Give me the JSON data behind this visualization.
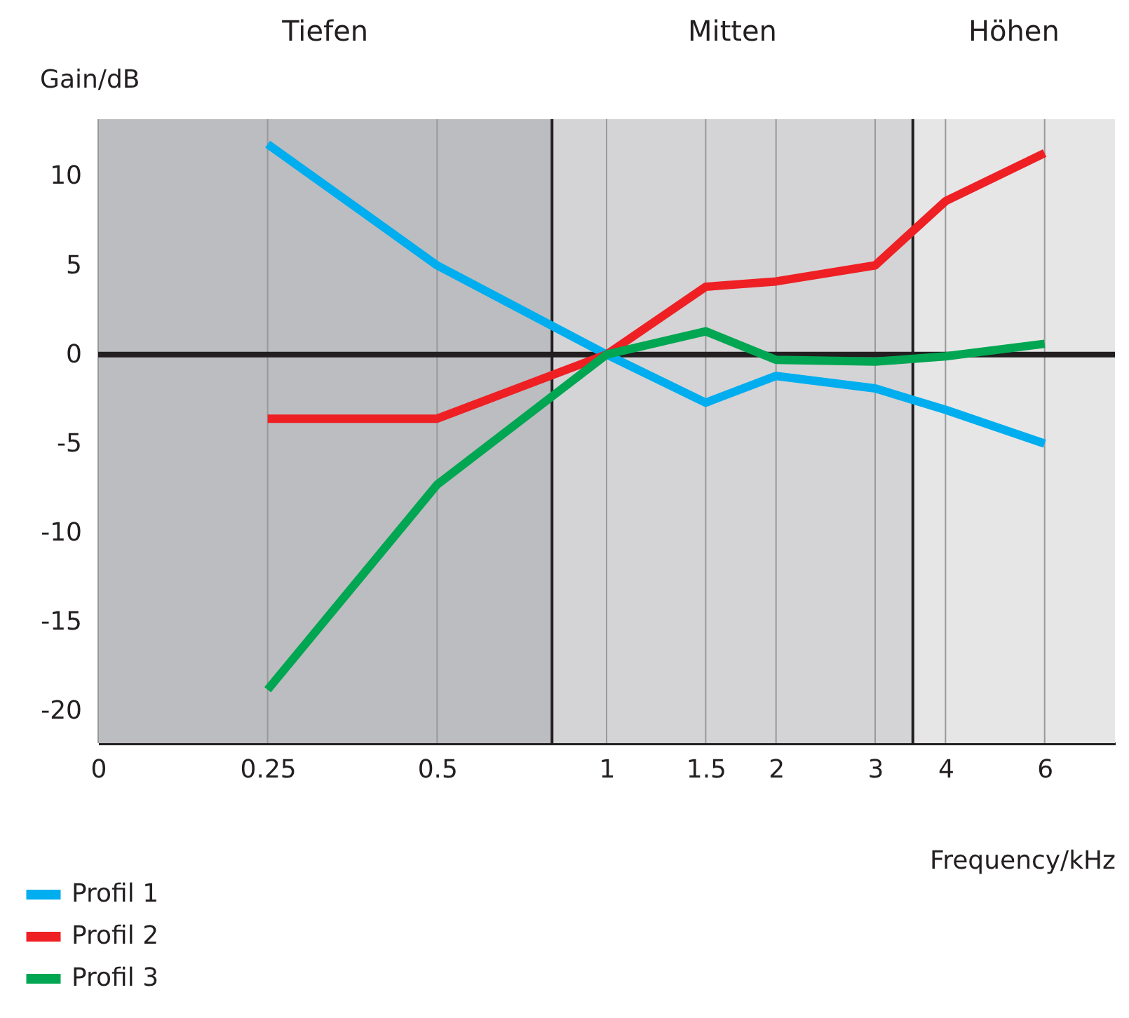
{
  "chart_data": {
    "type": "line",
    "xlabel": "Frequency/kHz",
    "ylabel": "Gain/dB",
    "x": [
      0.25,
      0.5,
      1,
      1.5,
      2,
      3,
      4,
      6
    ],
    "series": [
      {
        "name": "Profil 1",
        "color": "#00aeef",
        "values": [
          11.8,
          5,
          0,
          -2.7,
          -1.2,
          -1.9,
          -3.1,
          -5.0
        ]
      },
      {
        "name": "Profil 2",
        "color": "#ee2024",
        "values": [
          -3.6,
          -3.6,
          0,
          3.8,
          4.1,
          5.0,
          8.6,
          11.3
        ]
      },
      {
        "name": "Profil 3",
        "color": "#00a651",
        "values": [
          -18.8,
          -7.3,
          0,
          1.3,
          -0.3,
          -0.4,
          -0.1,
          0.6
        ]
      }
    ],
    "log": "x",
    "xlim": [
      0.125,
      8
    ],
    "xticks": [
      {
        "value": 0.125,
        "label": "0"
      },
      0.25,
      0.5,
      1,
      1.5,
      2,
      3,
      4,
      6
    ],
    "ylim": [
      -21.8,
      13.2
    ],
    "yticks": [
      -20,
      -15,
      -10,
      -5,
      0,
      5,
      10
    ],
    "bands": [
      {
        "axis": "x",
        "from": 0.125,
        "to": 0.8,
        "label": "Tiefen",
        "color": "#bcbdc1"
      },
      {
        "axis": "x",
        "from": 0.8,
        "to": 3.5,
        "label": "Mitten",
        "color": "#d4d4d6"
      },
      {
        "axis": "x",
        "from": 3.5,
        "to": 8,
        "label": "Höhen",
        "color": "#e6e6e7"
      }
    ],
    "ref_lines": [
      {
        "axis": "y",
        "value": 0,
        "color": "#231f20"
      },
      {
        "axis": "x",
        "value": 0.8,
        "color": "#231f20"
      },
      {
        "axis": "x",
        "value": 3.5,
        "color": "#231f20"
      }
    ],
    "grid": "x",
    "legend": "bottom left",
    "marker": "none",
    "line_style": "solid"
  }
}
